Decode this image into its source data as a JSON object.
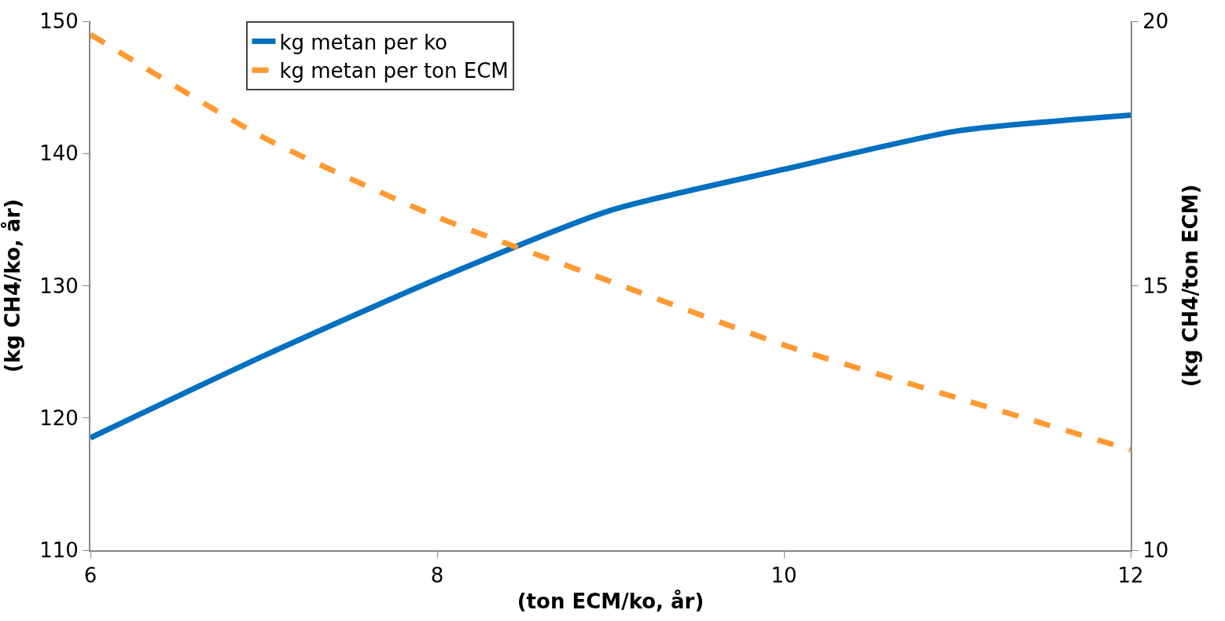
{
  "chart_data": {
    "type": "line",
    "xlabel": "(ton ECM/ko, år)",
    "ylabel": "(kg CH4/ko, år)",
    "y2label": "(kg CH4/ton ECM)",
    "x": [
      6,
      7,
      8,
      9,
      10,
      11,
      12
    ],
    "series": [
      {
        "name": "kg metan per ko",
        "color": "#0070c0",
        "values": [
          118.5,
          124.7,
          130.5,
          135.7,
          138.8,
          141.7,
          142.9
        ],
        "line_style": "solid"
      },
      {
        "name": "kg metan per ton ECM",
        "color": "#ff9933",
        "values": [
          19.75,
          17.8,
          16.3,
          15.08,
          13.88,
          12.88,
          11.9
        ],
        "line_style": "dashed",
        "axis": "y2"
      }
    ],
    "xlim": [
      6,
      12
    ],
    "xticks": [
      6,
      8,
      10,
      12
    ],
    "ylim": [
      110,
      150
    ],
    "yticks": [
      110,
      120,
      130,
      140,
      150
    ],
    "y2lim": [
      10,
      20
    ],
    "y2ticks": [
      10,
      15,
      20
    ],
    "legend": "top",
    "marker": "none"
  }
}
